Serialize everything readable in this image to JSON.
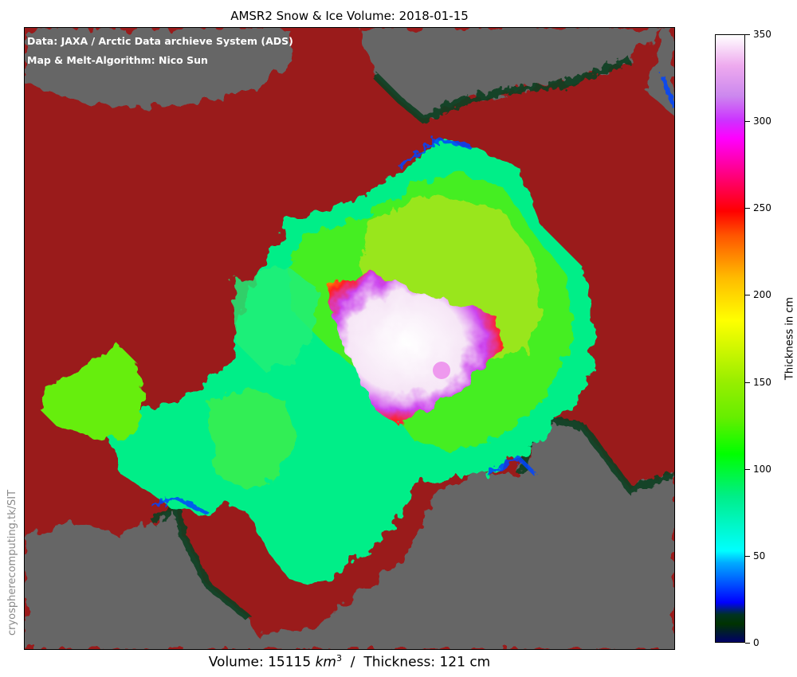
{
  "title": "AMSR2 Snow & Ice Volume: 2018-01-15",
  "credits": {
    "data": "Data: JAXA / Arctic Data archieve System (ADS)",
    "algorithm": "Map & Melt-Algorithm: Nico Sun"
  },
  "watermark": "cryospherecomputing.tk/SIT",
  "stats": {
    "volume_label": "Volume: 15115 ",
    "volume_unit": "km",
    "volume_exp": "3",
    "separator": "  /  ",
    "thickness": "Thickness: 121 cm"
  },
  "colorbar": {
    "label": "Thickness in cm",
    "range": [
      0,
      350
    ],
    "ticks": [
      "0",
      "50",
      "100",
      "150",
      "200",
      "250",
      "300",
      "350"
    ]
  },
  "colors": {
    "land": "#666666",
    "ocean": "#9a1b1b",
    "coast": "#0f4020"
  }
}
